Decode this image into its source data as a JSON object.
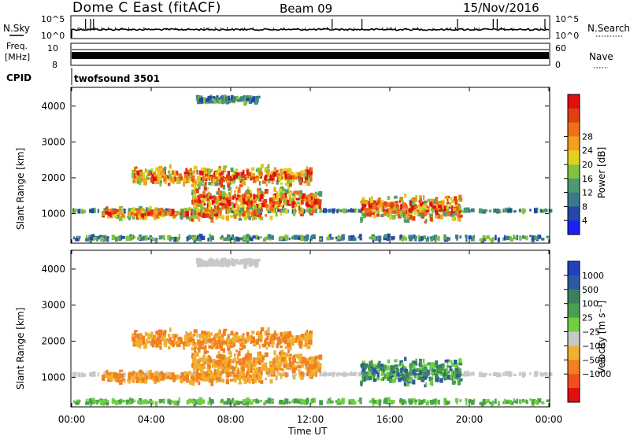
{
  "header": {
    "title": "Dome C East (fitACF)",
    "beam": "Beam 09",
    "date": "15/Nov/2016"
  },
  "noise_panel": {
    "left_label": "N.Sky",
    "right_label": "N.Search",
    "y_ticks_left": [
      "10^5",
      "10^0"
    ],
    "y_ticks_right": [
      "10^5",
      "10^0"
    ]
  },
  "freq_panel": {
    "left_label_line1": "Freq.",
    "left_label_line2": "[MHz]",
    "right_label": "Nave",
    "y_ticks_left": [
      "10",
      "8"
    ],
    "y_ticks_right": [
      "60",
      "0"
    ]
  },
  "cpid_panel": {
    "label": "CPID",
    "text": "twofsound 3501"
  },
  "power_panel": {
    "ylabel": "Slant Range [km]",
    "y_ticks": [
      "1000",
      "2000",
      "3000",
      "4000"
    ],
    "colorbar_label": "Power [dB]",
    "colorbar_ticks": [
      "4",
      "8",
      "12",
      "16",
      "20",
      "24",
      "28"
    ],
    "colorbar_colors": [
      "#1c20f0",
      "#2348a8",
      "#3a7a8c",
      "#4b9a70",
      "#84c23c",
      "#e0d020",
      "#f2a020",
      "#ee7018",
      "#e04010",
      "#e01010"
    ]
  },
  "velocity_panel": {
    "ylabel": "Slant Range [km]",
    "y_ticks": [
      "1000",
      "2000",
      "3000",
      "4000"
    ],
    "colorbar_label": "Velocity [m s⁻¹]",
    "colorbar_ticks": [
      "1000",
      "500",
      "100",
      "25",
      "−25",
      "−100",
      "−500",
      "−1000"
    ],
    "colorbar_colors": [
      "#2040c0",
      "#2a5aa0",
      "#3a8060",
      "#4aa050",
      "#70d040",
      "#c8c8c8",
      "#f0b030",
      "#f08020",
      "#f05020",
      "#e01010"
    ]
  },
  "x_axis": {
    "ticks": [
      "00:00",
      "04:00",
      "08:00",
      "12:00",
      "16:00",
      "20:00",
      "00:00"
    ],
    "label": "Time UT"
  },
  "chart_data": {
    "type": "heatmap",
    "title": "Dome C East (fitACF)",
    "x_range_hours": [
      0,
      24
    ],
    "y_range_km": [
      200,
      4500
    ],
    "panels": [
      "Power [dB]",
      "Velocity [m s-1]"
    ],
    "echo_regions": [
      {
        "t_start": 0.0,
        "t_end": 24.0,
        "r_center": 1080,
        "r_halfwidth": 40
      },
      {
        "t_start": 1.5,
        "t_end": 9.5,
        "r_center": 1000,
        "r_halfwidth": 220
      },
      {
        "t_start": 6.0,
        "t_end": 12.5,
        "r_center": 1350,
        "r_halfwidth": 550
      },
      {
        "t_start": 3.0,
        "t_end": 12.0,
        "r_center": 2050,
        "r_halfwidth": 350
      },
      {
        "t_start": 14.5,
        "t_end": 19.5,
        "r_center": 1150,
        "r_halfwidth": 480
      },
      {
        "t_start": 6.2,
        "t_end": 9.3,
        "r_center": 4180,
        "r_halfwidth": 120
      },
      {
        "t_start": 0.0,
        "t_end": 24.0,
        "r_center": 320,
        "r_halfwidth": 90
      }
    ]
  }
}
